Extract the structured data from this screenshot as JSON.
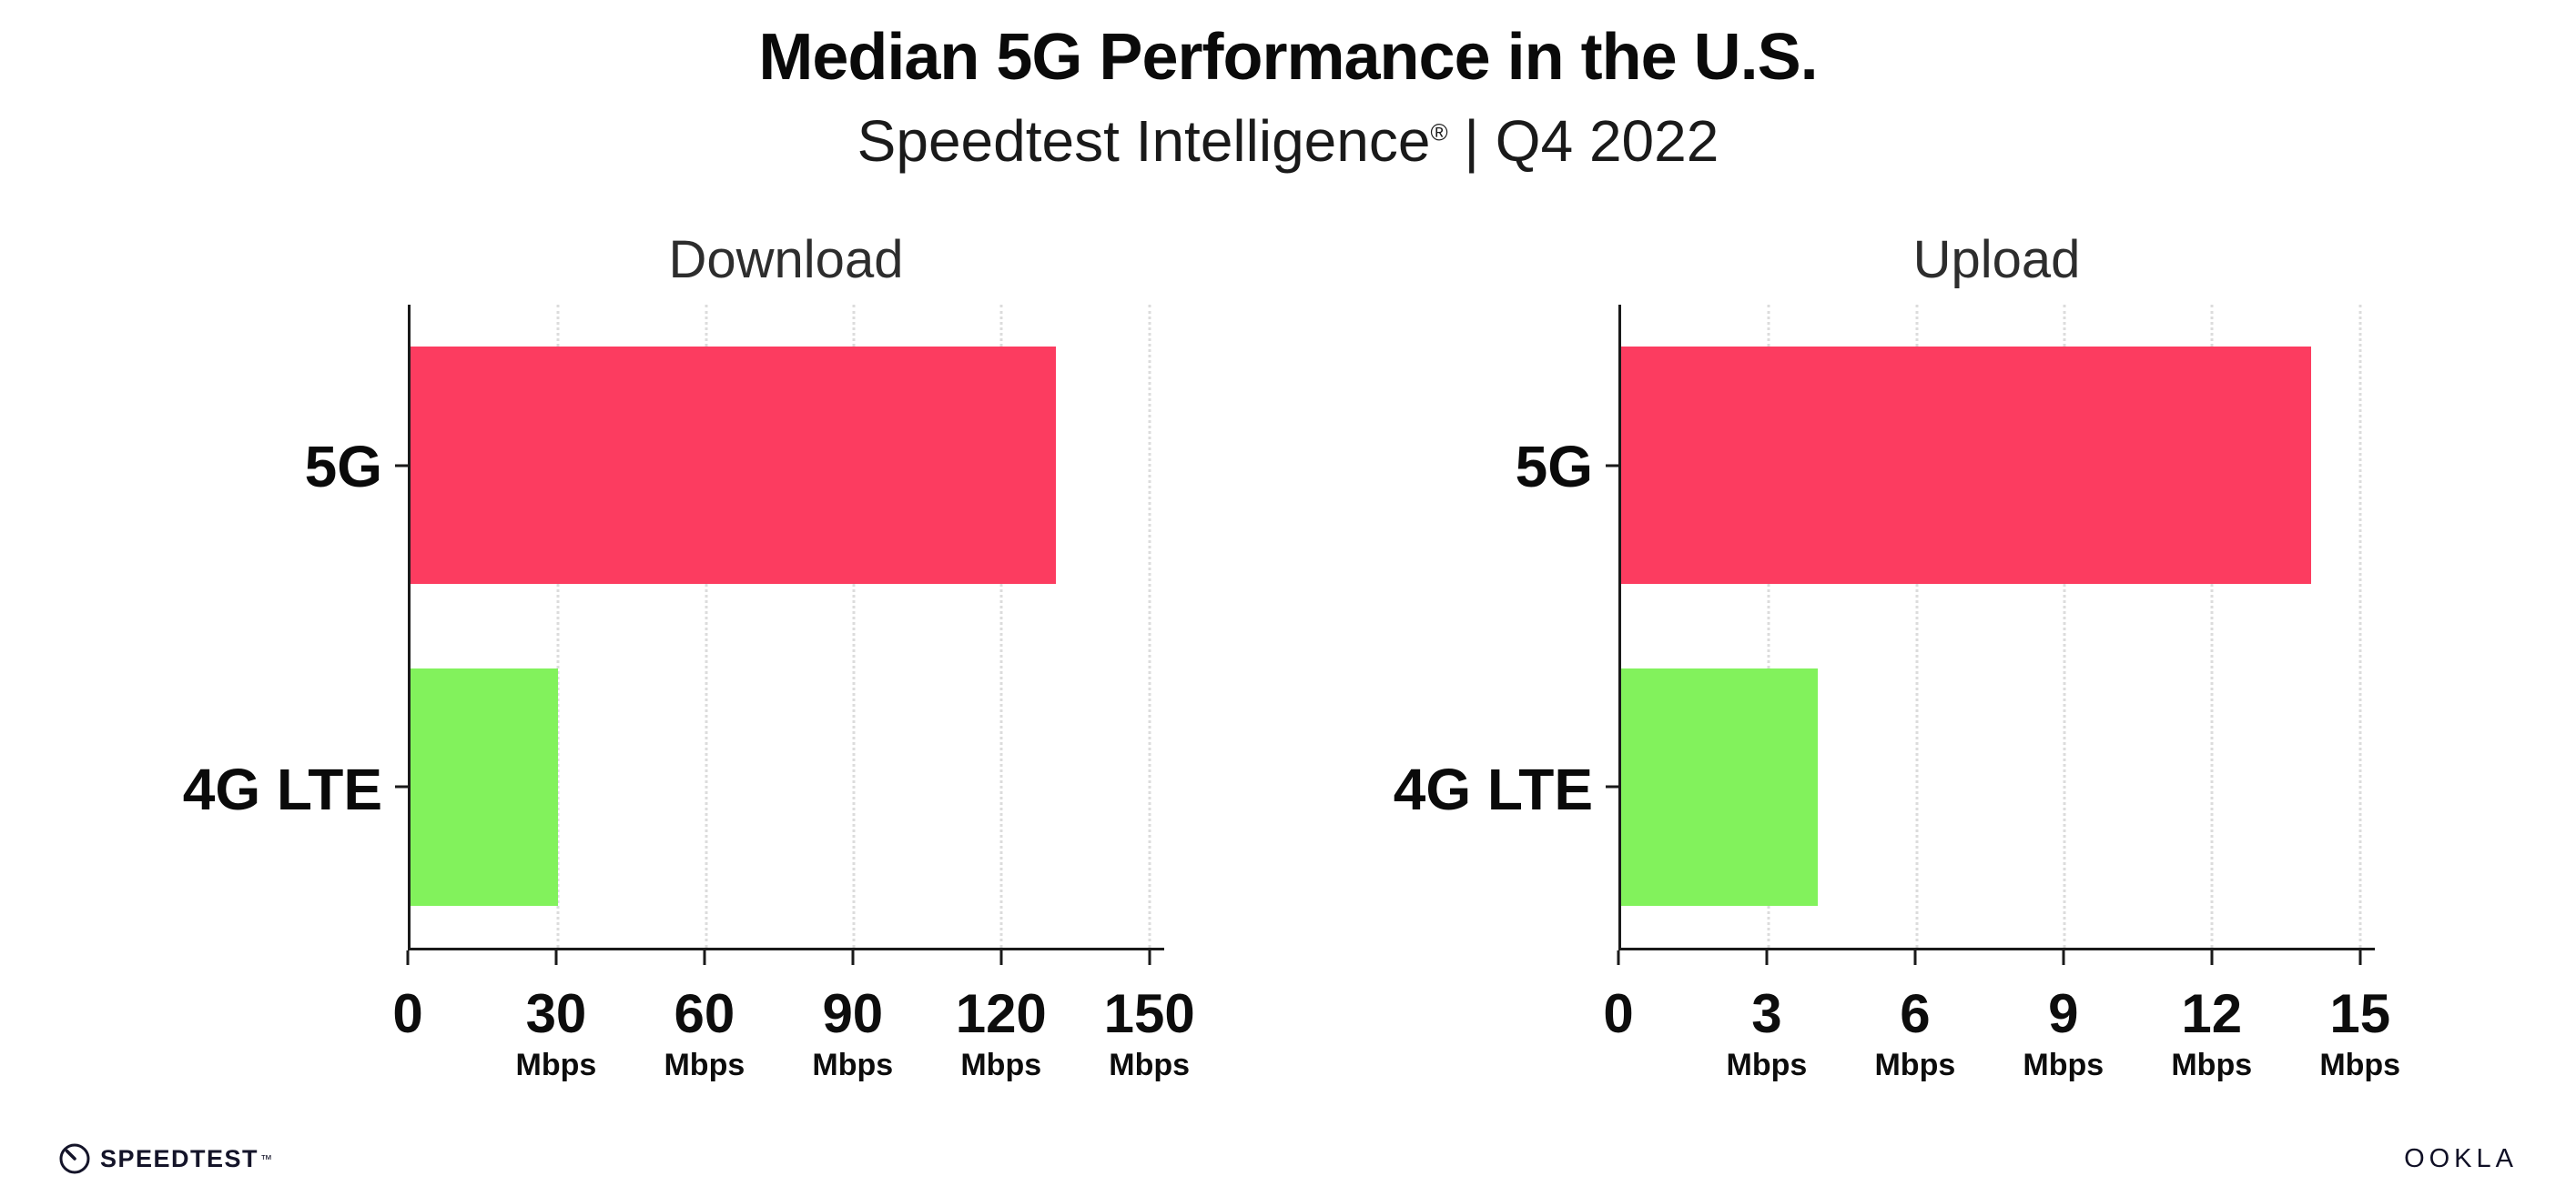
{
  "header": {
    "title": "Median 5G Performance in the U.S.",
    "subtitle_brand": "Speedtest Intelligence",
    "subtitle_reg": "®",
    "subtitle_rest": " | Q4 2022"
  },
  "colors": {
    "bar_5g": "#FC3C60",
    "bar_4g": "#82F25C",
    "axis": "#1a1a1a",
    "gridline": "#dcdcdc"
  },
  "chart_data": [
    {
      "type": "bar",
      "orientation": "horizontal",
      "title": "Download",
      "categories": [
        "5G",
        "4G LTE"
      ],
      "values": [
        131,
        30
      ],
      "unit": "Mbps",
      "tick_unit": "Mbps",
      "xlim": [
        0,
        150
      ],
      "xticks": [
        0,
        30,
        60,
        90,
        120,
        150
      ],
      "grid": "dotted-vertical",
      "legend": "none"
    },
    {
      "type": "bar",
      "orientation": "horizontal",
      "title": "Upload",
      "categories": [
        "5G",
        "4G LTE"
      ],
      "values": [
        14,
        4
      ],
      "unit": "Mbps",
      "tick_unit": "Mbps",
      "xlim": [
        0,
        15
      ],
      "xticks": [
        0,
        3,
        6,
        9,
        12,
        15
      ],
      "grid": "dotted-vertical",
      "legend": "none"
    }
  ],
  "footer": {
    "speedtest_label": "SPEEDTEST",
    "speedtest_tm": "™",
    "ookla_label": "OOKLA"
  }
}
